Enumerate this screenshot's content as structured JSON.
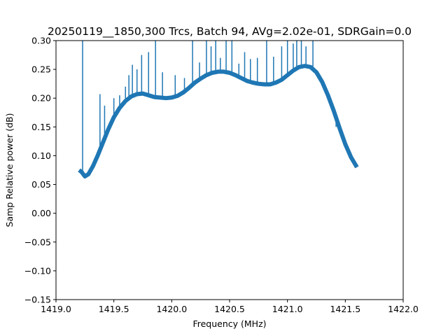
{
  "chart_data": {
    "type": "line",
    "title": "20250119__1850,300 Trcs, Batch 94, AVg=2.02e-01, SDRGain=0.0",
    "xlabel": "Frequency (MHz)",
    "ylabel": "Samp Relative power (dB)",
    "xlim": [
      1419.0,
      1422.0
    ],
    "ylim": [
      -0.15,
      0.3
    ],
    "xticks": [
      1419.0,
      1419.5,
      1420.0,
      1420.5,
      1421.0,
      1421.5,
      1422.0
    ],
    "xtick_labels": [
      "1419.0",
      "1419.5",
      "1420.0",
      "1420.5",
      "1421.0",
      "1421.5",
      "1422.0"
    ],
    "yticks": [
      -0.15,
      -0.1,
      -0.05,
      0.0,
      0.05,
      0.1,
      0.15,
      0.2,
      0.25,
      0.3
    ],
    "ytick_labels": [
      "−0.15",
      "−0.10",
      "−0.05",
      "0.00",
      "0.05",
      "0.10",
      "0.15",
      "0.20",
      "0.25",
      "0.30"
    ],
    "grid": false,
    "line_color": "#1f77b4",
    "series": [
      {
        "x": [
          1419.2,
          1419.22,
          1419.25,
          1419.28,
          1419.32,
          1419.36,
          1419.4,
          1419.45,
          1419.5,
          1419.55,
          1419.6,
          1419.65,
          1419.7,
          1419.75,
          1419.8,
          1419.85,
          1419.9,
          1419.95,
          1420.0,
          1420.05,
          1420.1,
          1420.15,
          1420.2,
          1420.25,
          1420.3,
          1420.35,
          1420.4,
          1420.45,
          1420.5,
          1420.55,
          1420.6,
          1420.65,
          1420.7,
          1420.75,
          1420.8,
          1420.85,
          1420.9,
          1420.95,
          1421.0,
          1421.05,
          1421.1,
          1421.15,
          1421.2,
          1421.25,
          1421.3,
          1421.35,
          1421.4,
          1421.45,
          1421.5,
          1421.55,
          1421.6
        ],
        "y": [
          0.075,
          0.072,
          0.064,
          0.068,
          0.082,
          0.1,
          0.12,
          0.145,
          0.167,
          0.183,
          0.195,
          0.203,
          0.207,
          0.208,
          0.205,
          0.202,
          0.201,
          0.2,
          0.201,
          0.204,
          0.21,
          0.218,
          0.227,
          0.234,
          0.24,
          0.244,
          0.246,
          0.246,
          0.244,
          0.24,
          0.235,
          0.23,
          0.227,
          0.225,
          0.224,
          0.224,
          0.227,
          0.232,
          0.24,
          0.248,
          0.254,
          0.256,
          0.254,
          0.245,
          0.228,
          0.205,
          0.178,
          0.148,
          0.12,
          0.097,
          0.08
        ]
      },
      {
        "x": [
          1419.23,
          1419.38,
          1419.42,
          1419.5,
          1419.55,
          1419.6,
          1419.63,
          1419.66,
          1419.7,
          1419.74,
          1419.8,
          1419.86,
          1419.92,
          1420.03,
          1420.11,
          1420.18,
          1420.24,
          1420.3,
          1420.34,
          1420.38,
          1420.42,
          1420.47,
          1420.52,
          1420.58,
          1420.63,
          1420.68,
          1420.74,
          1420.82,
          1420.88,
          1420.95,
          1421.0,
          1421.05,
          1421.08,
          1421.12,
          1421.16,
          1421.22,
          1421.28,
          1421.35,
          1421.42
        ],
        "y": [
          0.3,
          0.207,
          0.187,
          0.2,
          0.205,
          0.22,
          0.24,
          0.258,
          0.25,
          0.275,
          0.28,
          0.3,
          0.245,
          0.24,
          0.235,
          0.3,
          0.262,
          0.3,
          0.29,
          0.3,
          0.27,
          0.3,
          0.3,
          0.26,
          0.28,
          0.268,
          0.27,
          0.3,
          0.272,
          0.29,
          0.3,
          0.295,
          0.3,
          0.3,
          0.29,
          0.3,
          0.233,
          0.205,
          0.15
        ]
      }
    ]
  }
}
